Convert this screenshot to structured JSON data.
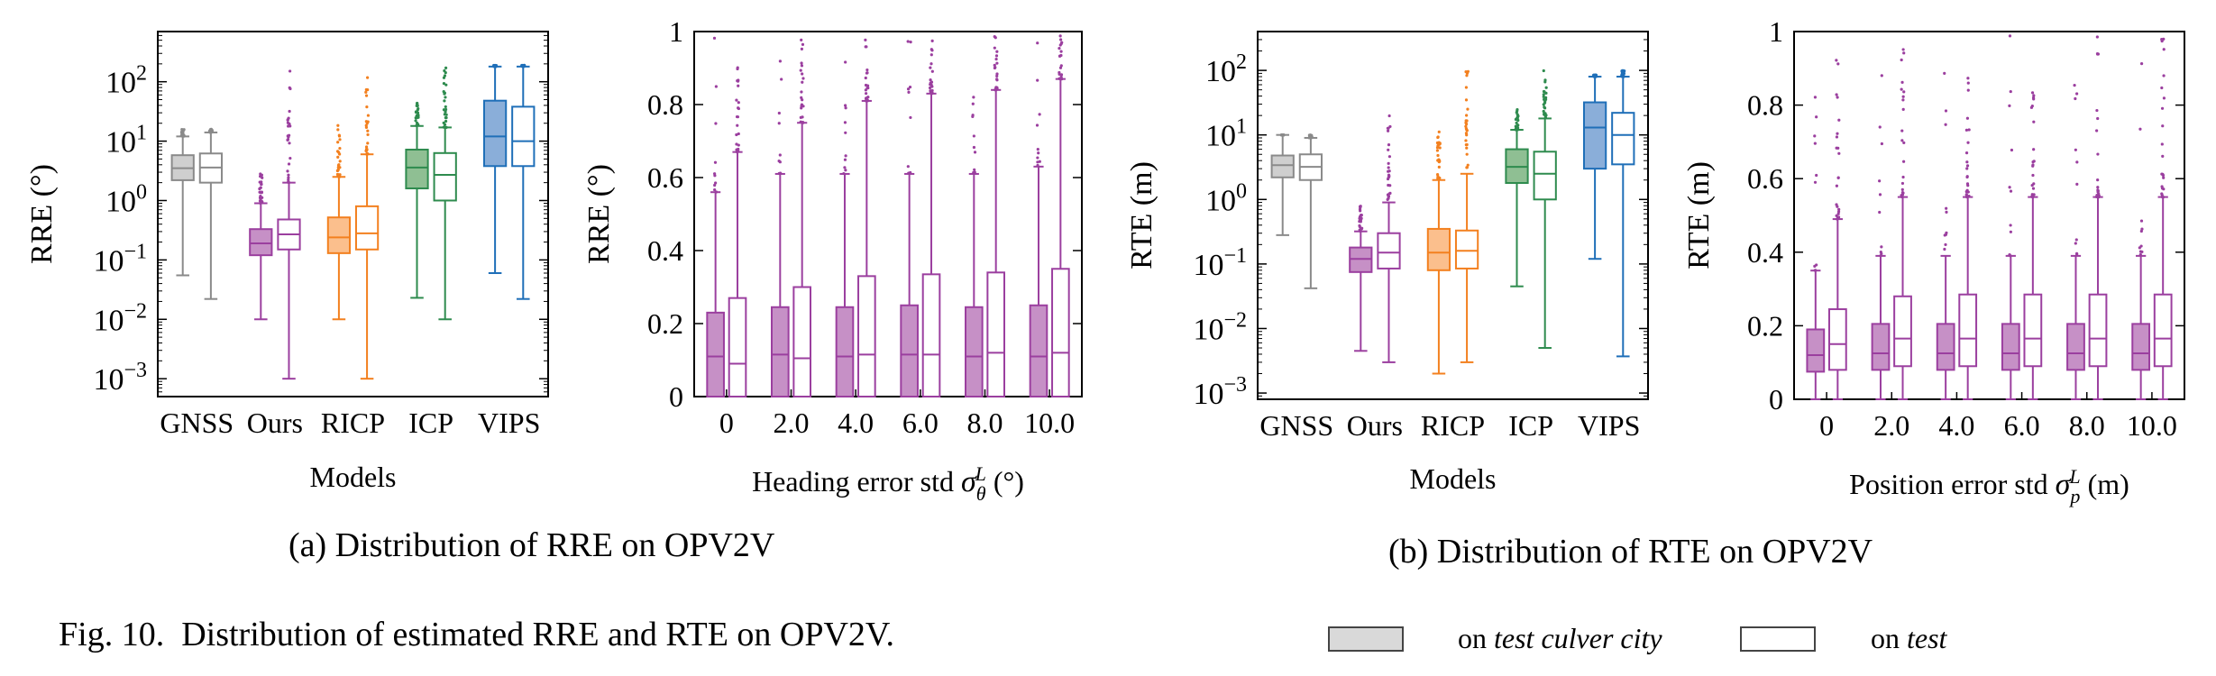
{
  "colors": {
    "GNSS": "#8a8a8a",
    "Ours": "#9b3f9f",
    "RICP": "#f3801f",
    "ICP": "#2e8b4e",
    "VIPS": "#1f6fb8",
    "sweep": "#9b3f9f",
    "fill_GNSS": "#cfcfcf",
    "fill_Ours": "#c690c6",
    "fill_RICP": "#fbbf8d",
    "fill_ICP": "#8fbf93",
    "fill_VIPS": "#8aaed9"
  },
  "chart_data": [
    {
      "id": "rre_models",
      "type": "box",
      "ylabel": "RRE (°)",
      "xlabel": "Models",
      "yscale": "log",
      "ylim": [
        0.0005,
        700
      ],
      "yticks": [
        0.001,
        0.01,
        0.1,
        1,
        10,
        100
      ],
      "ytick_labels": [
        [
          "10",
          "−3"
        ],
        [
          "10",
          "−2"
        ],
        [
          "10",
          "−1"
        ],
        [
          "10",
          "0"
        ],
        [
          "10",
          "1"
        ],
        [
          "10",
          "2"
        ]
      ],
      "categories": [
        "GNSS",
        "Ours",
        "RICP",
        "ICP",
        "VIPS"
      ],
      "series": [
        {
          "name": "on test culver city",
          "filled": true,
          "boxes": [
            {
              "wlo": 0.055,
              "q1": 2.2,
              "med": 3.5,
              "q3": 5.8,
              "whi": 12,
              "outlier_max": 16
            },
            {
              "wlo": 0.01,
              "q1": 0.12,
              "med": 0.19,
              "q3": 0.33,
              "whi": 0.9,
              "outlier_max": 3
            },
            {
              "wlo": 0.01,
              "q1": 0.13,
              "med": 0.24,
              "q3": 0.52,
              "whi": 2.5,
              "outlier_max": 30
            },
            {
              "wlo": 0.023,
              "q1": 1.6,
              "med": 3.6,
              "q3": 7.2,
              "whi": 18,
              "outlier_max": 45
            },
            {
              "wlo": 0.06,
              "q1": 3.8,
              "med": 12,
              "q3": 48,
              "whi": 180,
              "outlier_max": 190
            }
          ]
        },
        {
          "name": "on test",
          "filled": false,
          "boxes": [
            {
              "wlo": 0.022,
              "q1": 2.0,
              "med": 3.6,
              "q3": 6.2,
              "whi": 14,
              "outlier_max": 16
            },
            {
              "wlo": 0.001,
              "q1": 0.15,
              "med": 0.27,
              "q3": 0.48,
              "whi": 2.0,
              "outlier_max": 190
            },
            {
              "wlo": 0.001,
              "q1": 0.15,
              "med": 0.28,
              "q3": 0.8,
              "whi": 6,
              "outlier_max": 190
            },
            {
              "wlo": 0.01,
              "q1": 1.0,
              "med": 2.7,
              "q3": 6.3,
              "whi": 17,
              "outlier_max": 190
            },
            {
              "wlo": 0.022,
              "q1": 3.8,
              "med": 10,
              "q3": 38,
              "whi": 180,
              "outlier_max": 190
            }
          ]
        }
      ]
    },
    {
      "id": "rre_heading",
      "type": "box",
      "ylabel": "RRE (°)",
      "xlabel": "Heading error std σθL (°)",
      "ylim": [
        0,
        1
      ],
      "yticks": [
        0,
        0.2,
        0.4,
        0.6,
        0.8,
        1
      ],
      "ytick_labels": [
        "0",
        "0.2",
        "0.4",
        "0.6",
        "0.8",
        "1"
      ],
      "categories": [
        "0",
        "2.0",
        "4.0",
        "6.0",
        "8.0",
        "10.0"
      ],
      "series": [
        {
          "name": "on test culver city",
          "filled": true,
          "boxes": [
            {
              "wlo": 0,
              "q1": 0,
              "med": 0.11,
              "q3": 0.23,
              "whi": 0.56
            },
            {
              "wlo": 0,
              "q1": 0,
              "med": 0.115,
              "q3": 0.245,
              "whi": 0.61
            },
            {
              "wlo": 0,
              "q1": 0,
              "med": 0.11,
              "q3": 0.245,
              "whi": 0.61
            },
            {
              "wlo": 0,
              "q1": 0,
              "med": 0.115,
              "q3": 0.25,
              "whi": 0.61
            },
            {
              "wlo": 0,
              "q1": 0,
              "med": 0.11,
              "q3": 0.245,
              "whi": 0.61
            },
            {
              "wlo": 0,
              "q1": 0,
              "med": 0.11,
              "q3": 0.25,
              "whi": 0.63
            }
          ]
        },
        {
          "name": "on test",
          "filled": false,
          "boxes": [
            {
              "wlo": 0,
              "q1": 0,
              "med": 0.09,
              "q3": 0.27,
              "whi": 0.67
            },
            {
              "wlo": 0,
              "q1": 0,
              "med": 0.105,
              "q3": 0.3,
              "whi": 0.75
            },
            {
              "wlo": 0,
              "q1": 0,
              "med": 0.115,
              "q3": 0.33,
              "whi": 0.81
            },
            {
              "wlo": 0,
              "q1": 0,
              "med": 0.115,
              "q3": 0.335,
              "whi": 0.83
            },
            {
              "wlo": 0,
              "q1": 0,
              "med": 0.12,
              "q3": 0.34,
              "whi": 0.84
            },
            {
              "wlo": 0,
              "q1": 0,
              "med": 0.12,
              "q3": 0.35,
              "whi": 0.87
            }
          ]
        }
      ]
    },
    {
      "id": "rte_models",
      "type": "box",
      "ylabel": "RTE (m)",
      "xlabel": "Models",
      "yscale": "log",
      "ylim": [
        0.0008,
        400
      ],
      "yticks": [
        0.001,
        0.01,
        0.1,
        1,
        10,
        100
      ],
      "ytick_labels": [
        [
          "10",
          "−3"
        ],
        [
          "10",
          "−2"
        ],
        [
          "10",
          "−1"
        ],
        [
          "10",
          "0"
        ],
        [
          "10",
          "1"
        ],
        [
          "10",
          "2"
        ]
      ],
      "categories": [
        "GNSS",
        "Ours",
        "RICP",
        "ICP",
        "VIPS"
      ],
      "series": [
        {
          "name": "on test culver city",
          "filled": true,
          "boxes": [
            {
              "wlo": 0.28,
              "q1": 2.2,
              "med": 3.4,
              "q3": 4.8,
              "whi": 10,
              "outlier_max": 10
            },
            {
              "wlo": 0.0045,
              "q1": 0.075,
              "med": 0.12,
              "q3": 0.18,
              "whi": 0.32,
              "outlier_max": 0.8
            },
            {
              "wlo": 0.002,
              "q1": 0.08,
              "med": 0.15,
              "q3": 0.35,
              "whi": 2.0,
              "outlier_max": 12
            },
            {
              "wlo": 0.045,
              "q1": 1.8,
              "med": 3.2,
              "q3": 6.0,
              "whi": 12,
              "outlier_max": 25
            },
            {
              "wlo": 0.12,
              "q1": 3.0,
              "med": 13,
              "q3": 32,
              "whi": 80,
              "outlier_max": 85
            }
          ]
        },
        {
          "name": "on test",
          "filled": false,
          "boxes": [
            {
              "wlo": 0.042,
              "q1": 2.0,
              "med": 3.2,
              "q3": 5.0,
              "whi": 9,
              "outlier_max": 10
            },
            {
              "wlo": 0.003,
              "q1": 0.085,
              "med": 0.15,
              "q3": 0.3,
              "whi": 0.9,
              "outlier_max": 30
            },
            {
              "wlo": 0.003,
              "q1": 0.085,
              "med": 0.16,
              "q3": 0.33,
              "whi": 2.5,
              "outlier_max": 100
            },
            {
              "wlo": 0.005,
              "q1": 1.0,
              "med": 2.5,
              "q3": 5.5,
              "whi": 18,
              "outlier_max": 100
            },
            {
              "wlo": 0.0037,
              "q1": 3.5,
              "med": 10,
              "q3": 22,
              "whi": 80,
              "outlier_max": 100
            }
          ]
        }
      ]
    },
    {
      "id": "rte_position",
      "type": "box",
      "ylabel": "RTE (m)",
      "xlabel": "Position error std σpL (m)",
      "ylim": [
        0,
        1
      ],
      "yticks": [
        0,
        0.2,
        0.4,
        0.6,
        0.8,
        1
      ],
      "ytick_labels": [
        "0",
        "0.2",
        "0.4",
        "0.6",
        "0.8",
        "1"
      ],
      "categories": [
        "0",
        "2.0",
        "4.0",
        "6.0",
        "8.0",
        "10.0"
      ],
      "series": [
        {
          "name": "on test culver city",
          "filled": true,
          "boxes": [
            {
              "wlo": 0,
              "q1": 0.075,
              "med": 0.12,
              "q3": 0.19,
              "whi": 0.35
            },
            {
              "wlo": 0,
              "q1": 0.08,
              "med": 0.125,
              "q3": 0.205,
              "whi": 0.39
            },
            {
              "wlo": 0,
              "q1": 0.08,
              "med": 0.125,
              "q3": 0.205,
              "whi": 0.39
            },
            {
              "wlo": 0,
              "q1": 0.08,
              "med": 0.125,
              "q3": 0.205,
              "whi": 0.39
            },
            {
              "wlo": 0,
              "q1": 0.08,
              "med": 0.125,
              "q3": 0.205,
              "whi": 0.39
            },
            {
              "wlo": 0,
              "q1": 0.08,
              "med": 0.125,
              "q3": 0.205,
              "whi": 0.39
            }
          ]
        },
        {
          "name": "on test",
          "filled": false,
          "boxes": [
            {
              "wlo": 0,
              "q1": 0.08,
              "med": 0.15,
              "q3": 0.245,
              "whi": 0.49
            },
            {
              "wlo": 0,
              "q1": 0.09,
              "med": 0.165,
              "q3": 0.28,
              "whi": 0.55
            },
            {
              "wlo": 0,
              "q1": 0.09,
              "med": 0.165,
              "q3": 0.285,
              "whi": 0.55
            },
            {
              "wlo": 0,
              "q1": 0.09,
              "med": 0.165,
              "q3": 0.285,
              "whi": 0.55
            },
            {
              "wlo": 0,
              "q1": 0.09,
              "med": 0.165,
              "q3": 0.285,
              "whi": 0.55
            },
            {
              "wlo": 0,
              "q1": 0.09,
              "med": 0.165,
              "q3": 0.285,
              "whi": 0.55
            }
          ]
        }
      ]
    }
  ],
  "captions": {
    "a": "(a) Distribution of RRE on OPV2V",
    "b": "(b) Distribution of RTE on OPV2V",
    "fig_label": "Fig. 10.",
    "fig_text": "Distribution of estimated RRE and RTE on OPV2V."
  },
  "legend": {
    "item1_prefix": "on",
    "item1_italic": "test culver city",
    "item2_prefix": "on",
    "item2_italic": "test"
  }
}
